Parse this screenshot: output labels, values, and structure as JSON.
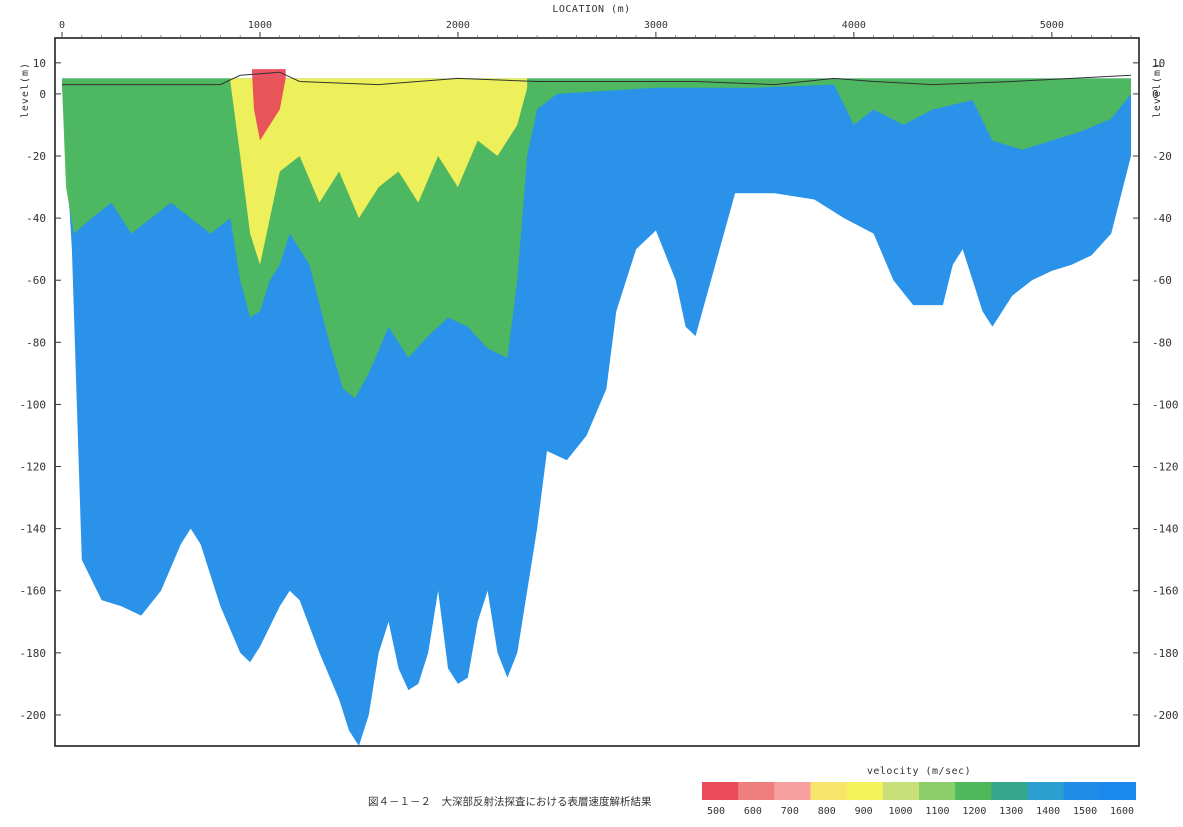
{
  "chart_data": {
    "type": "heatmap",
    "xlabel": "LOCATION (m)",
    "ylabel_left": "level(m)",
    "ylabel_right": "level(m)",
    "x_range": [
      0,
      5400
    ],
    "y_range": [
      -210,
      18
    ],
    "x_ticks": [
      0,
      1000,
      2000,
      3000,
      4000,
      5000
    ],
    "y_ticks": [
      10,
      0,
      -20,
      -40,
      -60,
      -80,
      -100,
      -120,
      -140,
      -160,
      -180,
      -200
    ],
    "surface_profile": [
      {
        "x": 0,
        "y": 3
      },
      {
        "x": 400,
        "y": 3
      },
      {
        "x": 800,
        "y": 3
      },
      {
        "x": 900,
        "y": 6
      },
      {
        "x": 1100,
        "y": 7
      },
      {
        "x": 1200,
        "y": 4
      },
      {
        "x": 1600,
        "y": 3
      },
      {
        "x": 2000,
        "y": 5
      },
      {
        "x": 2400,
        "y": 4
      },
      {
        "x": 2800,
        "y": 4
      },
      {
        "x": 3200,
        "y": 4
      },
      {
        "x": 3600,
        "y": 3
      },
      {
        "x": 3900,
        "y": 5
      },
      {
        "x": 4100,
        "y": 4
      },
      {
        "x": 4400,
        "y": 3
      },
      {
        "x": 4800,
        "y": 4
      },
      {
        "x": 5100,
        "y": 5
      },
      {
        "x": 5400,
        "y": 6
      }
    ],
    "velocity_zones": [
      {
        "velocity": 1500,
        "color": "#1f8de8",
        "polygon": [
          [
            0,
            3
          ],
          [
            50,
            -50
          ],
          [
            100,
            -150
          ],
          [
            200,
            -163
          ],
          [
            300,
            -165
          ],
          [
            400,
            -168
          ],
          [
            500,
            -160
          ],
          [
            600,
            -145
          ],
          [
            650,
            -140
          ],
          [
            700,
            -145
          ],
          [
            800,
            -165
          ],
          [
            900,
            -180
          ],
          [
            950,
            -183
          ],
          [
            1000,
            -178
          ],
          [
            1100,
            -165
          ],
          [
            1150,
            -160
          ],
          [
            1200,
            -163
          ],
          [
            1300,
            -180
          ],
          [
            1400,
            -195
          ],
          [
            1450,
            -205
          ],
          [
            1500,
            -210
          ],
          [
            1550,
            -200
          ],
          [
            1600,
            -180
          ],
          [
            1650,
            -170
          ],
          [
            1700,
            -185
          ],
          [
            1750,
            -192
          ],
          [
            1800,
            -190
          ],
          [
            1850,
            -180
          ],
          [
            1900,
            -160
          ],
          [
            1950,
            -185
          ],
          [
            2000,
            -190
          ],
          [
            2050,
            -188
          ],
          [
            2100,
            -170
          ],
          [
            2150,
            -160
          ],
          [
            2200,
            -180
          ],
          [
            2250,
            -188
          ],
          [
            2300,
            -180
          ],
          [
            2350,
            -160
          ],
          [
            2400,
            -140
          ],
          [
            2450,
            -115
          ],
          [
            2550,
            -118
          ],
          [
            2650,
            -110
          ],
          [
            2750,
            -95
          ],
          [
            2800,
            -70
          ],
          [
            2900,
            -50
          ],
          [
            3000,
            -44
          ],
          [
            3100,
            -60
          ],
          [
            3150,
            -75
          ],
          [
            3200,
            -78
          ],
          [
            3300,
            -55
          ],
          [
            3400,
            -32
          ],
          [
            3600,
            -32
          ],
          [
            3800,
            -34
          ],
          [
            3950,
            -40
          ],
          [
            4100,
            -45
          ],
          [
            4200,
            -60
          ],
          [
            4300,
            -68
          ],
          [
            4450,
            -68
          ],
          [
            4500,
            -55
          ],
          [
            4550,
            -50
          ],
          [
            4650,
            -70
          ],
          [
            4700,
            -75
          ],
          [
            4800,
            -65
          ],
          [
            4900,
            -60
          ],
          [
            5000,
            -57
          ],
          [
            5100,
            -55
          ],
          [
            5200,
            -52
          ],
          [
            5300,
            -45
          ],
          [
            5400,
            -20
          ],
          [
            5400,
            5
          ],
          [
            0,
            5
          ]
        ]
      },
      {
        "velocity": 1200,
        "color": "#4fb85a",
        "polygon": [
          [
            0,
            3
          ],
          [
            20,
            -30
          ],
          [
            60,
            -45
          ],
          [
            150,
            -40
          ],
          [
            250,
            -35
          ],
          [
            350,
            -45
          ],
          [
            450,
            -40
          ],
          [
            550,
            -35
          ],
          [
            650,
            -40
          ],
          [
            750,
            -45
          ],
          [
            850,
            -40
          ],
          [
            900,
            -60
          ],
          [
            950,
            -72
          ],
          [
            1000,
            -70
          ],
          [
            1050,
            -60
          ],
          [
            1100,
            -55
          ],
          [
            1150,
            -45
          ],
          [
            1250,
            -55
          ],
          [
            1350,
            -80
          ],
          [
            1420,
            -95
          ],
          [
            1480,
            -98
          ],
          [
            1550,
            -90
          ],
          [
            1650,
            -75
          ],
          [
            1750,
            -85
          ],
          [
            1850,
            -78
          ],
          [
            1950,
            -72
          ],
          [
            2050,
            -75
          ],
          [
            2150,
            -82
          ],
          [
            2250,
            -85
          ],
          [
            2300,
            -60
          ],
          [
            2350,
            -20
          ],
          [
            2400,
            -5
          ],
          [
            2500,
            0
          ],
          [
            3000,
            2
          ],
          [
            3500,
            2
          ],
          [
            3900,
            3
          ],
          [
            4000,
            -10
          ],
          [
            4100,
            -5
          ],
          [
            4250,
            -10
          ],
          [
            4400,
            -5
          ],
          [
            4600,
            -2
          ],
          [
            4700,
            -15
          ],
          [
            4850,
            -18
          ],
          [
            5000,
            -15
          ],
          [
            5150,
            -12
          ],
          [
            5300,
            -8
          ],
          [
            5400,
            0
          ],
          [
            5400,
            5
          ],
          [
            0,
            5
          ]
        ]
      },
      {
        "velocity": 900,
        "color": "#f5f25a",
        "polygon": [
          [
            850,
            4
          ],
          [
            900,
            -20
          ],
          [
            950,
            -45
          ],
          [
            1000,
            -55
          ],
          [
            1050,
            -40
          ],
          [
            1100,
            -25
          ],
          [
            1200,
            -20
          ],
          [
            1300,
            -35
          ],
          [
            1400,
            -25
          ],
          [
            1500,
            -40
          ],
          [
            1600,
            -30
          ],
          [
            1700,
            -25
          ],
          [
            1800,
            -35
          ],
          [
            1900,
            -20
          ],
          [
            2000,
            -30
          ],
          [
            2100,
            -15
          ],
          [
            2200,
            -20
          ],
          [
            2300,
            -10
          ],
          [
            2350,
            2
          ],
          [
            2350,
            5
          ],
          [
            850,
            5
          ]
        ]
      },
      {
        "velocity": 500,
        "color": "#e94b5a",
        "polygon": [
          [
            960,
            7
          ],
          [
            970,
            -5
          ],
          [
            1000,
            -15
          ],
          [
            1050,
            -10
          ],
          [
            1100,
            -5
          ],
          [
            1130,
            5
          ],
          [
            1130,
            8
          ],
          [
            960,
            8
          ]
        ]
      }
    ],
    "legend": {
      "title": "velocity (m/sec)",
      "ticks": [
        500,
        600,
        700,
        800,
        900,
        1000,
        1100,
        1200,
        1300,
        1400,
        1500,
        1600
      ],
      "colors": [
        "#e94b5a",
        "#ee7f7e",
        "#f6a0a0",
        "#f7e46a",
        "#f5f25a",
        "#c7e07a",
        "#8ccf6a",
        "#4fb85a",
        "#35a88b",
        "#2d9ed0",
        "#1f8de8",
        "#1b88ee"
      ]
    },
    "caption": "図４－１－２　大深部反射法探査における表層速度解析結果"
  }
}
